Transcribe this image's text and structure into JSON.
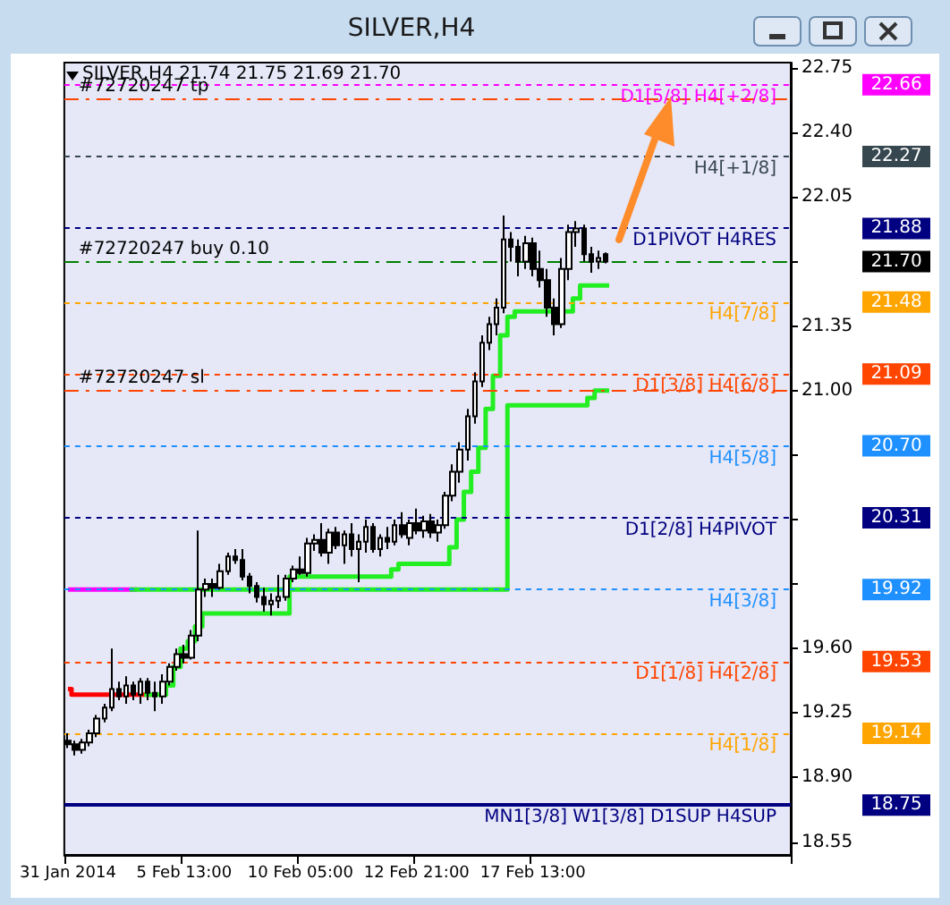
{
  "chart_data": {
    "type": "candlestick",
    "title": "SILVER,H4",
    "subtitle": "SILVER,H4  21.74 21.75 21.69 21.70",
    "categories": [
      "31 Jan 2014",
      null,
      null,
      null,
      null,
      null,
      null,
      null,
      null,
      null,
      null,
      null,
      null,
      null,
      null,
      null,
      "5 Feb 13:00",
      null,
      null,
      null,
      null,
      null,
      null,
      null,
      null,
      null,
      null,
      null,
      null,
      null,
      null,
      null,
      "10 Feb 05:00",
      null,
      null,
      null,
      null,
      null,
      null,
      null,
      null,
      null,
      null,
      null,
      null,
      null,
      null,
      null,
      "12 Feb 21:00",
      null,
      null,
      null,
      null,
      null,
      null,
      null,
      null,
      null,
      null,
      null,
      null,
      null,
      null,
      null,
      "17 Feb 13:00",
      null,
      null,
      null,
      null,
      null,
      null,
      null,
      null,
      null,
      null,
      null,
      null,
      null,
      null,
      null,
      null,
      null,
      null,
      null,
      null,
      null,
      null,
      null,
      null,
      null,
      null,
      null,
      null,
      null,
      null,
      null,
      null,
      null,
      null,
      null
    ],
    "ohlc": [
      [
        19.1,
        19.14,
        19.06,
        19.08
      ],
      [
        19.08,
        19.1,
        19.02,
        19.05
      ],
      [
        19.05,
        19.11,
        19.03,
        19.09
      ],
      [
        19.09,
        19.16,
        19.07,
        19.14
      ],
      [
        19.14,
        19.24,
        19.12,
        19.22
      ],
      [
        19.22,
        19.3,
        19.2,
        19.28
      ],
      [
        19.28,
        19.6,
        19.26,
        19.38
      ],
      [
        19.38,
        19.42,
        19.32,
        19.34
      ],
      [
        19.34,
        19.45,
        19.3,
        19.4
      ],
      [
        19.4,
        19.42,
        19.32,
        19.35
      ],
      [
        19.35,
        19.44,
        19.3,
        19.42
      ],
      [
        19.42,
        19.44,
        19.32,
        19.36
      ],
      [
        19.36,
        19.42,
        19.26,
        19.34
      ],
      [
        19.34,
        19.46,
        19.3,
        19.42
      ],
      [
        19.42,
        19.52,
        19.4,
        19.5
      ],
      [
        19.5,
        19.6,
        19.48,
        19.57
      ],
      [
        19.57,
        19.62,
        19.52,
        19.55
      ],
      [
        19.55,
        19.7,
        19.54,
        19.67
      ],
      [
        19.67,
        20.24,
        19.64,
        19.92
      ],
      [
        19.92,
        19.98,
        19.88,
        19.95
      ],
      [
        19.95,
        19.98,
        19.88,
        19.93
      ],
      [
        19.93,
        20.06,
        19.92,
        20.02
      ],
      [
        20.02,
        20.12,
        20.0,
        20.1
      ],
      [
        20.1,
        20.14,
        20.06,
        20.08
      ],
      [
        20.08,
        20.14,
        19.97,
        19.99
      ],
      [
        19.99,
        20.01,
        19.9,
        19.94
      ],
      [
        19.94,
        19.96,
        19.85,
        19.88
      ],
      [
        19.88,
        19.93,
        19.8,
        19.84
      ],
      [
        19.84,
        19.9,
        19.78,
        19.86
      ],
      [
        19.86,
        20.0,
        19.82,
        19.88
      ],
      [
        19.88,
        20.0,
        19.86,
        19.98
      ],
      [
        19.98,
        20.05,
        19.96,
        20.03
      ],
      [
        20.03,
        20.1,
        20.0,
        20.01
      ],
      [
        20.01,
        20.2,
        19.99,
        20.17
      ],
      [
        20.17,
        20.22,
        20.13,
        20.19
      ],
      [
        20.19,
        20.28,
        20.1,
        20.12
      ],
      [
        20.12,
        20.25,
        20.06,
        20.23
      ],
      [
        20.23,
        20.26,
        20.14,
        20.16
      ],
      [
        20.16,
        20.24,
        20.06,
        20.22
      ],
      [
        20.22,
        20.28,
        20.1,
        20.14
      ],
      [
        20.14,
        20.22,
        19.96,
        20.18
      ],
      [
        20.18,
        20.3,
        20.12,
        20.26
      ],
      [
        20.26,
        20.28,
        20.12,
        20.14
      ],
      [
        20.14,
        20.22,
        20.1,
        20.2
      ],
      [
        20.2,
        20.26,
        20.14,
        20.18
      ],
      [
        20.18,
        20.3,
        20.16,
        20.27
      ],
      [
        20.27,
        20.34,
        20.2,
        20.22
      ],
      [
        20.2,
        20.3,
        20.16,
        20.28
      ],
      [
        20.28,
        20.36,
        20.22,
        20.24
      ],
      [
        20.24,
        20.32,
        20.2,
        20.29
      ],
      [
        20.29,
        20.33,
        20.2,
        20.23
      ],
      [
        20.23,
        20.3,
        20.18,
        20.27
      ],
      [
        20.27,
        20.45,
        20.25,
        20.43
      ],
      [
        20.43,
        20.6,
        20.4,
        20.56
      ],
      [
        20.56,
        20.72,
        20.5,
        20.68
      ],
      [
        20.68,
        20.9,
        20.62,
        20.86
      ],
      [
        20.86,
        21.1,
        20.82,
        21.05
      ],
      [
        21.05,
        21.3,
        21.02,
        21.26
      ],
      [
        21.26,
        21.4,
        21.22,
        21.36
      ],
      [
        21.36,
        21.5,
        21.3,
        21.45
      ],
      [
        21.45,
        21.95,
        21.42,
        21.82
      ],
      [
        21.82,
        21.86,
        21.7,
        21.78
      ],
      [
        21.78,
        21.82,
        21.62,
        21.7
      ],
      [
        21.7,
        21.84,
        21.66,
        21.8
      ],
      [
        21.8,
        21.83,
        21.62,
        21.66
      ],
      [
        21.66,
        21.76,
        21.56,
        21.6
      ],
      [
        21.6,
        21.66,
        21.4,
        21.45
      ],
      [
        21.45,
        21.5,
        21.3,
        21.36
      ],
      [
        21.36,
        21.72,
        21.34,
        21.66
      ],
      [
        21.66,
        21.9,
        21.6,
        21.86
      ],
      [
        21.86,
        21.92,
        21.78,
        21.88
      ],
      [
        21.88,
        21.9,
        21.7,
        21.74
      ],
      [
        21.74,
        21.78,
        21.64,
        21.7
      ],
      [
        21.7,
        21.76,
        21.66,
        21.72
      ],
      [
        21.74,
        21.75,
        21.69,
        21.7
      ],
      null,
      null,
      null,
      null,
      null,
      null,
      null,
      null,
      null,
      null,
      null,
      null,
      null,
      null,
      null,
      null,
      null,
      null,
      null,
      null,
      null,
      null,
      null,
      null,
      null
    ],
    "series": [
      {
        "type": "step",
        "color": "#ff0000",
        "values": [
          19.38,
          19.35,
          19.35,
          19.35,
          19.35,
          19.35,
          19.35,
          19.35,
          19.35,
          19.35,
          19.35,
          19.35,
          null,
          null,
          null,
          null,
          null,
          null,
          null,
          null,
          null,
          null,
          null,
          null,
          null,
          null,
          null,
          null,
          null,
          null,
          null,
          null,
          null,
          null,
          null,
          null,
          null,
          null,
          null,
          null,
          null,
          null,
          null,
          null,
          null,
          null,
          null,
          null,
          null,
          null,
          null,
          null,
          null,
          null,
          null,
          null,
          null,
          null,
          null,
          null,
          null,
          null,
          null,
          null,
          null,
          null,
          null,
          null,
          null,
          null,
          null,
          null,
          null,
          null,
          null,
          null,
          null,
          null,
          null,
          null,
          null,
          null,
          null,
          null,
          null,
          null,
          null,
          null,
          null,
          null,
          null,
          null,
          null,
          null,
          null,
          null,
          null,
          null,
          null,
          null
        ]
      },
      {
        "type": "step",
        "color": "#ff00ff",
        "values": [
          19.92,
          19.92,
          19.92,
          19.92,
          19.92,
          19.92,
          19.92,
          19.92,
          19.92,
          19.92,
          null,
          null,
          null,
          null,
          null,
          null,
          null,
          null,
          null,
          null,
          null,
          null,
          null,
          null,
          null,
          null,
          null,
          null,
          null,
          null,
          null,
          null,
          null,
          null,
          null,
          null,
          null,
          null,
          null,
          null,
          null,
          null,
          null,
          null,
          null,
          null,
          null,
          null,
          null,
          null,
          null,
          null,
          null,
          null,
          null,
          null,
          null,
          null,
          null,
          null,
          null,
          null,
          null,
          null,
          null,
          null,
          null,
          null,
          null,
          null,
          null,
          null,
          null,
          null,
          null,
          null,
          null,
          null,
          null,
          null,
          null,
          null,
          null,
          null,
          null,
          null,
          null,
          null,
          null,
          null,
          null,
          null,
          null,
          null,
          null,
          null,
          null,
          null,
          null,
          null
        ]
      },
      {
        "type": "step",
        "color": "#22ee22",
        "values": [
          null,
          null,
          null,
          null,
          null,
          null,
          null,
          null,
          null,
          null,
          null,
          19.35,
          19.35,
          19.35,
          19.4,
          19.5,
          19.6,
          19.64,
          19.72,
          19.79,
          19.79,
          19.79,
          19.79,
          19.79,
          19.79,
          19.79,
          19.79,
          19.79,
          19.79,
          19.79,
          19.79,
          19.99,
          19.99,
          19.99,
          19.99,
          19.99,
          19.99,
          19.99,
          19.99,
          19.99,
          19.99,
          19.99,
          19.99,
          19.99,
          19.99,
          20.03,
          20.06,
          20.06,
          20.06,
          20.06,
          20.06,
          20.06,
          20.06,
          20.15,
          20.3,
          20.45,
          20.56,
          20.69,
          20.9,
          21.08,
          21.3,
          21.4,
          21.43,
          21.43,
          21.43,
          21.43,
          21.43,
          21.43,
          21.43,
          21.43,
          21.5,
          21.57,
          21.57,
          21.57,
          21.57,
          null,
          null,
          null,
          null,
          null,
          null,
          null,
          null,
          null,
          null,
          null,
          null,
          null,
          null,
          null,
          null,
          null,
          null,
          null,
          null,
          null,
          null,
          null,
          null,
          null
        ]
      },
      {
        "type": "step",
        "color": "#22ee22",
        "values": [
          null,
          null,
          null,
          null,
          null,
          null,
          null,
          null,
          null,
          19.92,
          19.92,
          19.92,
          19.92,
          19.92,
          19.92,
          19.92,
          19.92,
          19.92,
          19.92,
          19.92,
          19.92,
          19.92,
          19.92,
          19.92,
          19.92,
          19.92,
          19.92,
          19.92,
          19.92,
          19.92,
          19.92,
          19.92,
          19.92,
          19.92,
          19.92,
          19.92,
          19.92,
          19.92,
          19.92,
          19.92,
          19.92,
          19.92,
          19.92,
          19.92,
          19.92,
          19.92,
          19.92,
          19.92,
          19.92,
          19.92,
          19.92,
          19.92,
          19.92,
          19.92,
          19.92,
          19.92,
          19.92,
          19.92,
          19.92,
          19.92,
          19.92,
          20.92,
          20.92,
          20.92,
          20.92,
          20.92,
          20.92,
          20.92,
          20.92,
          20.92,
          20.92,
          20.92,
          20.96,
          21.0,
          21.0,
          null,
          null,
          null,
          null,
          null,
          null,
          null,
          null,
          null,
          null,
          null,
          null,
          null,
          null,
          null,
          null,
          null,
          null,
          null,
          null,
          null,
          null,
          null,
          null,
          null
        ]
      }
    ],
    "grid": false,
    "ylim": [
      18.48,
      22.78
    ],
    "yticks": [
      22.75,
      {
        "value": 22.4,
        "label": "22.40"
      },
      22.05,
      {
        "value": 21.7,
        "label": null
      },
      21.35,
      {
        "value": 21.0,
        "label": "21.00"
      },
      {
        "value": 20.65,
        "label": null
      },
      {
        "value": 20.3,
        "label": null
      },
      {
        "value": 19.95,
        "label": null
      },
      {
        "value": 19.6,
        "label": "19.60"
      },
      19.25,
      {
        "value": 18.9,
        "label": "18.90"
      },
      18.55
    ],
    "ref_lines": [
      {
        "axis": "y",
        "value": 22.66,
        "label": "D1[5/8] H4[+2/8]",
        "color": "#ff00ff",
        "line_style": "dotted"
      },
      {
        "axis": "y",
        "value": 22.58,
        "label": "#72720247 tp",
        "color": "#ff4500",
        "line_style": "dashed"
      },
      {
        "axis": "y",
        "value": 22.27,
        "label": "H4[+1/8]",
        "color": "#37474f",
        "line_style": "dotted"
      },
      {
        "axis": "y",
        "value": 21.88,
        "label": "D1PIVOT H4RES",
        "color": "#000080",
        "line_style": "dotted"
      },
      {
        "axis": "y",
        "value": 21.7,
        "label": "#72720247 buy 0.10",
        "color": "#008000",
        "line_style": "dashed"
      },
      {
        "axis": "y",
        "value": 21.48,
        "label": "H4[7/8]",
        "color": "#ffa500",
        "line_style": "dotted"
      },
      {
        "axis": "y",
        "value": 21.09,
        "label": "D1[3/8] H4[6/8]",
        "color": "#ff4500",
        "line_style": "dotted"
      },
      {
        "axis": "y",
        "value": 21.0,
        "label": "#72720247 sl",
        "color": "#ff4500",
        "line_style": "dashed"
      },
      {
        "axis": "y",
        "value": 20.7,
        "label": "H4[5/8]",
        "color": "#1e90ff",
        "line_style": "dotted"
      },
      {
        "axis": "y",
        "value": 20.31,
        "label": "D1[2/8] H4PIVOT",
        "color": "#000080",
        "line_style": "dotted"
      },
      {
        "axis": "y",
        "value": 19.92,
        "label": "H4[3/8]",
        "color": "#1e90ff",
        "line_style": "dotted"
      },
      {
        "axis": "y",
        "value": 19.53,
        "label": "D1[1/8] H4[2/8]",
        "color": "#ff4500",
        "line_style": "dotted"
      },
      {
        "axis": "y",
        "value": 19.14,
        "label": "H4[1/8]",
        "color": "#ffa500",
        "line_style": "dotted"
      },
      {
        "axis": "y",
        "value": 18.75,
        "label": "MN1[3/8] W1[3/8] D1SUP H4SUP",
        "color": "#000080",
        "line_style": "solid"
      }
    ],
    "annotations": [
      "22.66",
      "22.27",
      "21.88",
      "21.70",
      "21.48",
      "21.09",
      "20.70",
      "20.31",
      "19.92",
      "19.53",
      "19.14",
      "18.75"
    ]
  }
}
